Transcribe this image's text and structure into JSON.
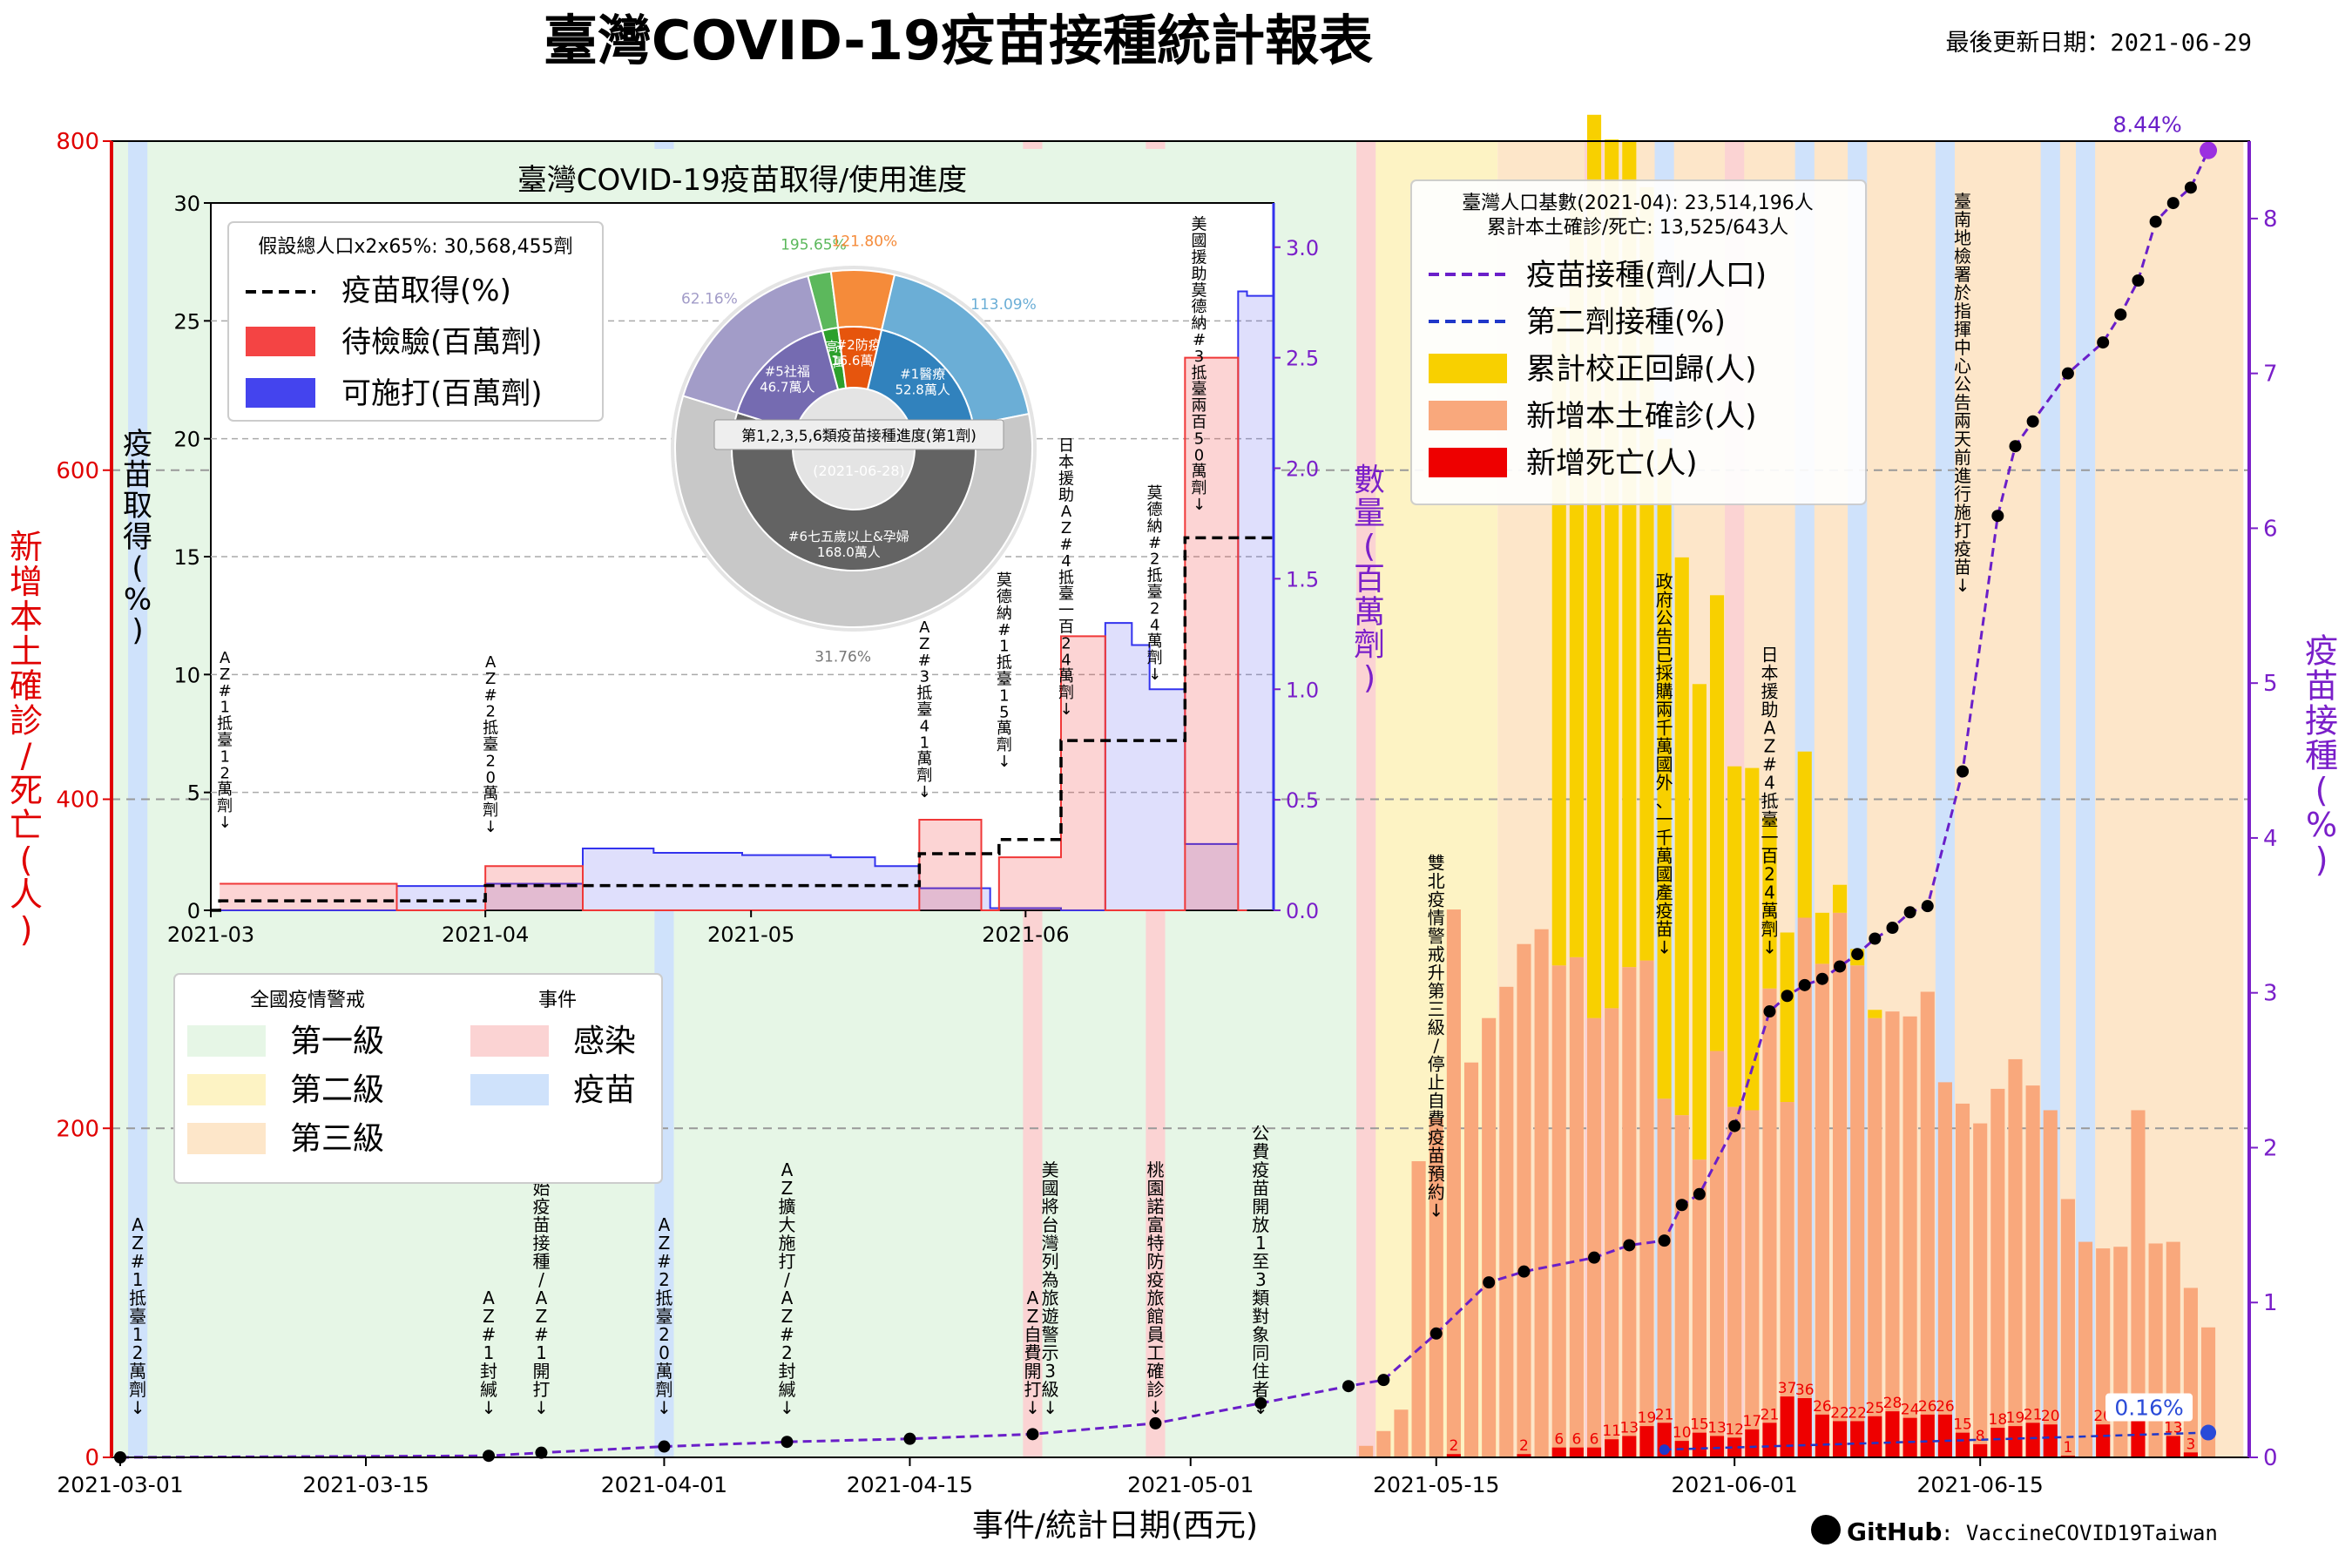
{
  "header": {
    "title": "臺灣COVID-19疫苗接種統計報表",
    "updated": "最後更新日期：2021-06-29"
  },
  "footer": {
    "github_label": "GitHub",
    "repo": ": VaccineCOVID19Taiwan"
  },
  "colors": {
    "left_axis": "#e00000",
    "right_axis": "#7a1fc9",
    "level1": "#e6f6e6",
    "level2": "#fdf3c4",
    "level3": "#fde6c9",
    "infection": "#fbd3d3",
    "vaccine": "#cfe2fb",
    "new_cases": "#f9a87c",
    "deaths": "#ee0000",
    "corrections": "#f8d000",
    "dose_line": "#6a1fc9",
    "second_dose": "#1f37c9",
    "pending": "#f03838",
    "usable": "#3333ee"
  },
  "chart_data": [
    {
      "type": "bar",
      "title": "臺灣COVID-19疫苗接種統計報表",
      "xlabel": "事件/統計日期(西元)",
      "ylabel": "新增本土確診/死亡(人)",
      "y2label": "疫苗接種(%)",
      "ylim": [
        0,
        800
      ],
      "y2lim": [
        0,
        8.5
      ],
      "xlim": [
        "2021-03-01",
        "2021-06-29"
      ],
      "yticks": [
        "0",
        "200",
        "400",
        "600",
        "800"
      ],
      "y2ticks": [
        "0",
        "1",
        "2",
        "3",
        "4",
        "5",
        "6",
        "7",
        "8"
      ],
      "xticks": [
        "2021-03-01",
        "2021-03-15",
        "2021-04-01",
        "2021-04-15",
        "2021-05-01",
        "2021-05-15",
        "2021-06-01",
        "2021-06-15"
      ],
      "x_start": "2021-03-01",
      "grid": "horizontal dashed",
      "background_levels": [
        {
          "from": "2021-03-01",
          "to": "2021-05-11",
          "level": "第一級"
        },
        {
          "from": "2021-05-11",
          "to": "2021-05-19",
          "level": "第二級"
        },
        {
          "from": "2021-05-19",
          "to": "2021-06-29",
          "level": "第三級"
        }
      ],
      "event_bands": [
        {
          "date": "2021-03-02",
          "kind": "疫苗"
        },
        {
          "date": "2021-04-01",
          "kind": "疫苗"
        },
        {
          "date": "2021-04-22",
          "kind": "感染"
        },
        {
          "date": "2021-04-29",
          "kind": "感染"
        },
        {
          "date": "2021-05-11",
          "kind": "感染"
        },
        {
          "date": "2021-05-24",
          "kind": "感染"
        },
        {
          "date": "2021-05-28",
          "kind": "疫苗"
        },
        {
          "date": "2021-06-01",
          "kind": "感染"
        },
        {
          "date": "2021-06-05",
          "kind": "疫苗"
        },
        {
          "date": "2021-06-08",
          "kind": "疫苗"
        },
        {
          "date": "2021-06-13",
          "kind": "疫苗"
        },
        {
          "date": "2021-06-19",
          "kind": "疫苗"
        },
        {
          "date": "2021-06-21",
          "kind": "疫苗"
        }
      ],
      "series": [
        {
          "name": "新增本土確診(人)",
          "kind": "bar",
          "x": [
            "2021-05-11",
            "2021-05-12",
            "2021-05-13",
            "2021-05-14",
            "2021-05-15",
            "2021-05-16",
            "2021-05-17",
            "2021-05-18",
            "2021-05-19",
            "2021-05-20",
            "2021-05-21",
            "2021-05-22",
            "2021-05-23",
            "2021-05-24",
            "2021-05-25",
            "2021-05-26",
            "2021-05-27",
            "2021-05-28",
            "2021-05-29",
            "2021-05-30",
            "2021-05-31",
            "2021-06-01",
            "2021-06-02",
            "2021-06-03",
            "2021-06-04",
            "2021-06-05",
            "2021-06-06",
            "2021-06-07",
            "2021-06-08",
            "2021-06-09",
            "2021-06-10",
            "2021-06-11",
            "2021-06-12",
            "2021-06-13",
            "2021-06-14",
            "2021-06-15",
            "2021-06-16",
            "2021-06-17",
            "2021-06-18",
            "2021-06-19",
            "2021-06-20",
            "2021-06-21",
            "2021-06-22",
            "2021-06-23",
            "2021-06-24",
            "2021-06-25",
            "2021-06-26",
            "2021-06-27",
            "2021-06-28"
          ],
          "y": [
            7,
            16,
            29,
            180,
            206,
            333,
            240,
            267,
            286,
            312,
            321,
            299,
            304,
            267,
            273,
            298,
            302,
            218,
            208,
            181,
            247,
            213,
            211,
            285,
            216,
            328,
            300,
            331,
            299,
            267,
            271,
            268,
            283,
            228,
            215,
            203,
            224,
            242,
            226,
            211,
            157,
            131,
            127,
            128,
            211,
            130,
            131,
            103,
            79
          ]
        },
        {
          "name": "累計校正回歸(人)",
          "kind": "bar_stacked",
          "x": [
            "2021-05-22",
            "2021-05-23",
            "2021-05-24",
            "2021-05-25",
            "2021-05-26",
            "2021-05-27",
            "2021-05-28",
            "2021-05-29",
            "2021-05-30",
            "2021-05-31",
            "2021-06-01",
            "2021-06-02",
            "2021-06-03",
            "2021-06-04",
            "2021-06-05",
            "2021-06-06",
            "2021-06-07",
            "2021-06-08",
            "2021-06-09",
            "2021-06-10"
          ],
          "y": [
            400,
            459,
            549,
            528,
            502,
            470,
            401,
            339,
            289,
            277,
            207,
            208,
            104,
            103,
            101,
            31,
            17,
            10,
            5,
            0
          ]
        },
        {
          "name": "新增死亡(人)",
          "kind": "bar",
          "x": [
            "2021-05-16",
            "2021-05-20",
            "2021-05-22",
            "2021-05-23",
            "2021-05-24",
            "2021-05-25",
            "2021-05-26",
            "2021-05-27",
            "2021-05-28",
            "2021-05-29",
            "2021-05-30",
            "2021-05-31",
            "2021-06-01",
            "2021-06-02",
            "2021-06-03",
            "2021-06-04",
            "2021-06-05",
            "2021-06-06",
            "2021-06-07",
            "2021-06-08",
            "2021-06-09",
            "2021-06-10",
            "2021-06-11",
            "2021-06-12",
            "2021-06-13",
            "2021-06-14",
            "2021-06-15",
            "2021-06-16",
            "2021-06-17",
            "2021-06-18",
            "2021-06-19",
            "2021-06-20",
            "2021-06-22",
            "2021-06-24",
            "2021-06-26",
            "2021-06-27"
          ],
          "y": [
            2,
            2,
            6,
            6,
            6,
            11,
            13,
            19,
            21,
            10,
            15,
            13,
            12,
            17,
            21,
            37,
            36,
            26,
            22,
            22,
            25,
            28,
            24,
            26,
            26,
            15,
            8,
            18,
            19,
            21,
            20,
            1,
            20,
            24,
            13,
            3
          ]
        },
        {
          "name": "疫苗接種(劑/人口)",
          "kind": "line",
          "axis": "right",
          "x": [
            "2021-03-01",
            "2021-03-22",
            "2021-03-25",
            "2021-04-01",
            "2021-04-08",
            "2021-04-15",
            "2021-04-22",
            "2021-04-29",
            "2021-05-05",
            "2021-05-10",
            "2021-05-12",
            "2021-05-15",
            "2021-05-18",
            "2021-05-20",
            "2021-05-24",
            "2021-05-26",
            "2021-05-28",
            "2021-05-29",
            "2021-05-30",
            "2021-06-01",
            "2021-06-03",
            "2021-06-04",
            "2021-06-05",
            "2021-06-06",
            "2021-06-07",
            "2021-06-08",
            "2021-06-09",
            "2021-06-10",
            "2021-06-11",
            "2021-06-12",
            "2021-06-14",
            "2021-06-16",
            "2021-06-17",
            "2021-06-18",
            "2021-06-20",
            "2021-06-22",
            "2021-06-23",
            "2021-06-24",
            "2021-06-25",
            "2021-06-26",
            "2021-06-27",
            "2021-06-28"
          ],
          "y": [
            0.0,
            0.01,
            0.03,
            0.07,
            0.1,
            0.12,
            0.15,
            0.22,
            0.35,
            0.46,
            0.5,
            0.8,
            1.13,
            1.2,
            1.29,
            1.37,
            1.4,
            1.63,
            1.7,
            2.14,
            2.88,
            2.98,
            3.05,
            3.09,
            3.17,
            3.25,
            3.35,
            3.42,
            3.52,
            3.56,
            4.43,
            6.08,
            6.53,
            6.69,
            7.0,
            7.2,
            7.38,
            7.6,
            7.98,
            8.1,
            8.2,
            8.44
          ],
          "end_label": "8.44%"
        },
        {
          "name": "第二劑接種(%)",
          "kind": "line",
          "axis": "right",
          "x": [
            "2021-05-28",
            "2021-06-28"
          ],
          "y": [
            0.05,
            0.16
          ],
          "end_label": "0.16%"
        }
      ],
      "stats_box": {
        "population": "臺灣人口基數(2021-04): 23,514,196人",
        "cumulative": "累計本土確診/死亡: 13,525/643人"
      },
      "legend": {
        "placement": "top-right",
        "items": [
          {
            "label": "疫苗接種(劑/人口)",
            "style": "purple-dashed"
          },
          {
            "label": "第二劑接種(%)",
            "style": "blue-dashed"
          },
          {
            "label": "累計校正回歸(人)",
            "style": "yellow"
          },
          {
            "label": "新增本土確診(人)",
            "style": "salmon"
          },
          {
            "label": "新增死亡(人)",
            "style": "red"
          }
        ]
      },
      "level_legend": {
        "placement": "middle-left",
        "col1_title": "全國疫情警戒",
        "col2_title": "事件",
        "items": [
          {
            "label": "第一級",
            "color": "level1"
          },
          {
            "label": "第二級",
            "color": "level2"
          },
          {
            "label": "第三級",
            "color": "level3"
          },
          {
            "label": "感染",
            "color": "infection"
          },
          {
            "label": "疫苗",
            "color": "vaccine"
          }
        ]
      },
      "annotations": [
        {
          "date": "2021-03-02",
          "y": 20,
          "text": "AZ#1抵臺12萬劑↓"
        },
        {
          "date": "2021-03-22",
          "y": 20,
          "text": "AZ#1封緘↓"
        },
        {
          "date": "2021-03-25",
          "y": 20,
          "text": "開始疫苗接種/AZ#1開打↓"
        },
        {
          "date": "2021-04-01",
          "y": 20,
          "text": "AZ#2抵臺20萬劑↓"
        },
        {
          "date": "2021-04-08",
          "y": 20,
          "text": "AZ擴大施打/AZ#2封緘↓"
        },
        {
          "date": "2021-04-22",
          "y": 20,
          "text": "AZ自費開打↓"
        },
        {
          "date": "2021-04-23",
          "y": 20,
          "text": "美國將台灣列為旅遊警示3級↓"
        },
        {
          "date": "2021-04-29",
          "y": 20,
          "text": "桃園諾富特防疫旅館員工確診↓"
        },
        {
          "date": "2021-05-05",
          "y": 20,
          "text": "公費疫苗開放1至3類對象同住者↓"
        },
        {
          "date": "2021-05-15",
          "y": 140,
          "text": "雙北疫情警戒升第三級/停止自費疫苗預約↓"
        },
        {
          "date": "2021-05-28",
          "y": 300,
          "text": "政府公告已採購兩千萬國外、一千萬國產疫苗↓"
        },
        {
          "date": "2021-06-03",
          "y": 300,
          "text": "日本援助AZ#4抵臺一百24萬劑↓"
        },
        {
          "date": "2021-06-14",
          "y": 520,
          "text": "臺南地檢署於指揮中心公告兩天前進行施打疫苗↓"
        }
      ]
    },
    {
      "type": "line",
      "title": "臺灣COVID-19疫苗取得/使用進度",
      "ylabel": "疫苗取得(%)",
      "y2label": "數量(百萬劑)",
      "ylim": [
        0,
        30
      ],
      "y2lim": [
        0,
        3.2
      ],
      "xlim": [
        "2021-03-01",
        "2021-06-29"
      ],
      "yticks": [
        "0",
        "5",
        "10",
        "15",
        "20",
        "25",
        "30"
      ],
      "y2ticks": [
        "0.0",
        "0.5",
        "1.0",
        "1.5",
        "2.0",
        "2.5",
        "3.0"
      ],
      "xticks": [
        "2021-03",
        "2021-04",
        "2021-05",
        "2021-06"
      ],
      "legend_title": "假設總人口x2x65%: 30,568,455劑",
      "series": [
        {
          "name": "疫苗取得(%)",
          "style": "black-dashed",
          "x": [
            "2021-03-01",
            "2021-03-02",
            "2021-04-01",
            "2021-05-20",
            "2021-05-29",
            "2021-06-05",
            "2021-06-19",
            "2021-06-29"
          ],
          "y": [
            0,
            0.4,
            1.05,
            2.4,
            3.0,
            7.2,
            15.8,
            15.8
          ]
        },
        {
          "name": "待檢驗(百萬劑)",
          "style": "red",
          "x": [
            "2021-03-02",
            "2021-03-22",
            "2021-04-01",
            "2021-04-12",
            "2021-04-19",
            "2021-05-20",
            "2021-05-27",
            "2021-05-29",
            "2021-06-05",
            "2021-06-10",
            "2021-06-19",
            "2021-06-25",
            "2021-06-26"
          ],
          "y": [
            0.12,
            0,
            0.2,
            0,
            0,
            0.41,
            0,
            0.24,
            1.24,
            0,
            2.5,
            0,
            0
          ]
        },
        {
          "name": "可施打(百萬劑)",
          "style": "blue",
          "x": [
            "2021-03-01",
            "2021-03-22",
            "2021-04-01",
            "2021-04-12",
            "2021-04-20",
            "2021-04-30",
            "2021-05-10",
            "2021-05-15",
            "2021-05-20",
            "2021-05-28",
            "2021-06-05",
            "2021-06-10",
            "2021-06-13",
            "2021-06-15",
            "2021-06-19",
            "2021-06-25",
            "2021-06-26",
            "2021-06-29"
          ],
          "y": [
            0,
            0.11,
            0.12,
            0.28,
            0.26,
            0.25,
            0.24,
            0.2,
            0.1,
            0.01,
            0,
            1.3,
            1.2,
            1.0,
            0.3,
            2.8,
            2.78,
            2.76
          ]
        }
      ],
      "annotations": [
        {
          "date": "2021-03-02",
          "text": "AZ#1抵臺12萬劑↓"
        },
        {
          "date": "2021-04-01",
          "text": "AZ#2抵臺20萬劑↓"
        },
        {
          "date": "2021-05-20",
          "text": "AZ#3抵臺41萬劑↓"
        },
        {
          "date": "2021-05-29",
          "text": "莫德納#1抵臺15萬劑↓"
        },
        {
          "date": "2021-06-05",
          "text": "日本援助AZ#4抵臺一百24萬劑↓"
        },
        {
          "date": "2021-06-15",
          "text": "莫德納#2抵臺24萬劑↓"
        },
        {
          "date": "2021-06-20",
          "text": "美國援助莫德納#3抵臺兩百50萬劑↓"
        }
      ]
    },
    {
      "type": "pie",
      "title": "第1,2,3,5,6類疫苗接種進度(第1劑)",
      "subtitle": "(2021-06-28)",
      "outer_ring": [
        {
          "label": "195.65%",
          "value": 6.1,
          "color": "#5cb85c"
        },
        {
          "label": "121.80%",
          "value": 16.6,
          "color": "#f58b3a"
        },
        {
          "label": "113.09%",
          "value": 52.8,
          "color": "#6baed6"
        },
        {
          "label": "31.76%",
          "value": 168.0,
          "color": "#c8c8c8"
        },
        {
          "label": "62.16%",
          "value": 46.7,
          "color": "#a29cc8"
        }
      ],
      "inner_ring": [
        {
          "label": "#3高接觸",
          "count": "6.1萬人",
          "value": 6.1,
          "color": "#2ca02c"
        },
        {
          "label": "#2防疫",
          "count": "16.6萬人",
          "value": 16.6,
          "color": "#e6550d"
        },
        {
          "label": "#1醫療",
          "count": "52.8萬人",
          "value": 52.8,
          "color": "#3182bd"
        },
        {
          "label": "#6七五歲以上&孕婦",
          "count": "168.0萬人",
          "value": 168.0,
          "color": "#636363"
        },
        {
          "label": "#5社福",
          "count": "46.7萬人",
          "value": 46.7,
          "color": "#756bb1"
        }
      ]
    }
  ]
}
